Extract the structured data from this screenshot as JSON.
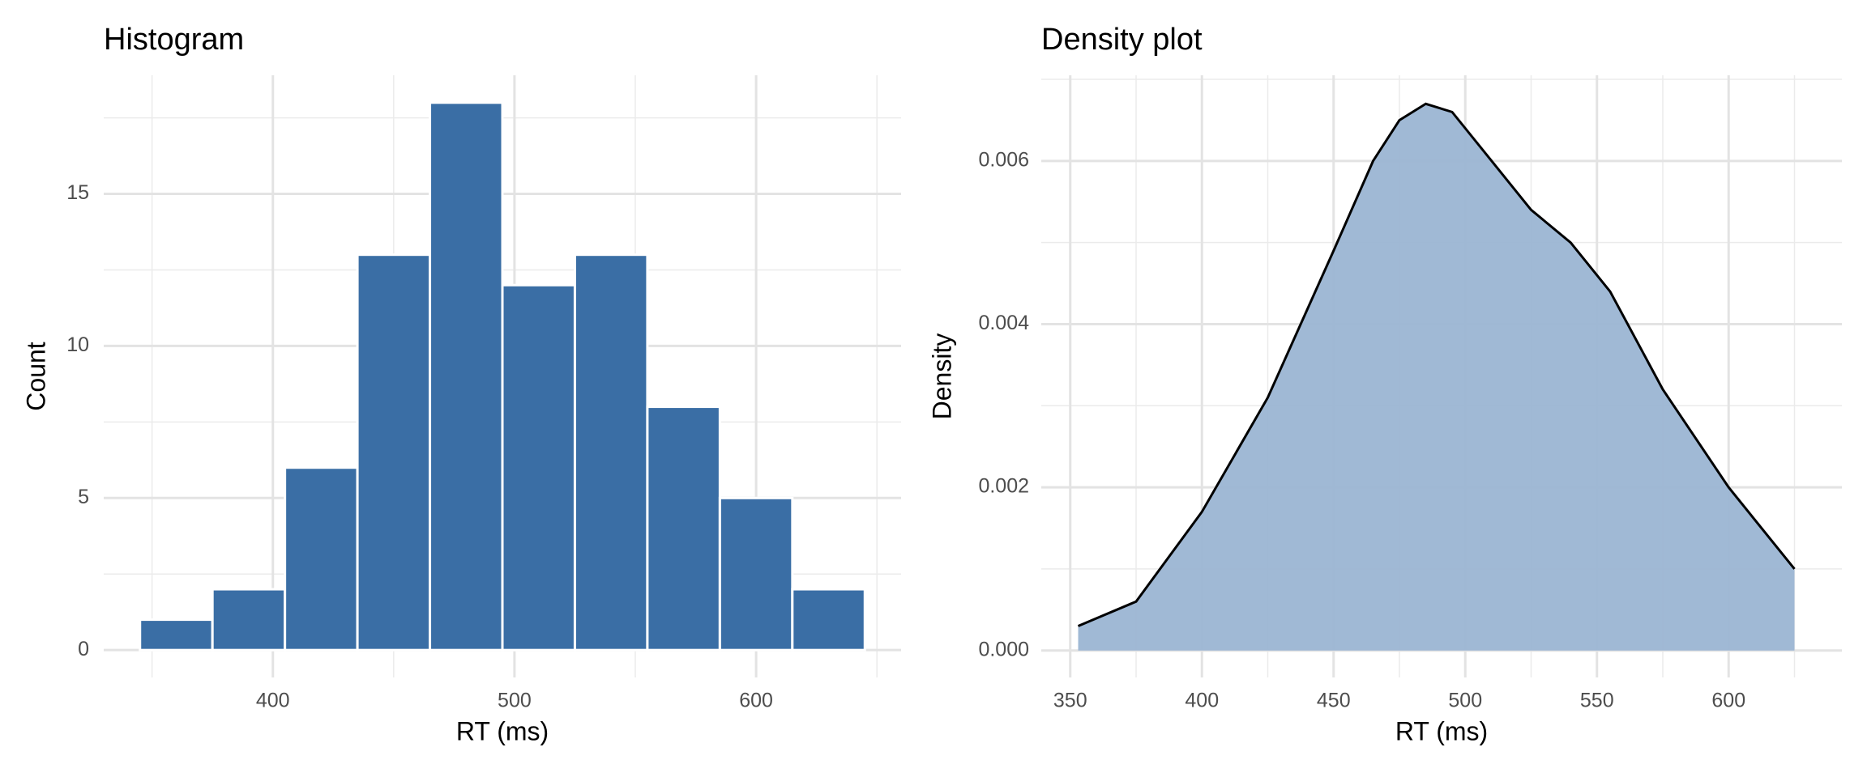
{
  "chart_data": [
    {
      "type": "histogram",
      "title": "Histogram",
      "x_label": "RT (ms)",
      "y_label": "Count",
      "bins": [
        345,
        375,
        405,
        435,
        465,
        495,
        525,
        555,
        585,
        615,
        645
      ],
      "values": [
        1,
        2,
        6,
        13,
        18,
        12,
        13,
        8,
        5,
        2
      ],
      "color": "#3a6ea5",
      "xlim": [
        330,
        660
      ],
      "ylim": [
        -0.9,
        18.9
      ],
      "xticks": [
        400,
        500,
        600
      ],
      "yticks": [
        0,
        5,
        10,
        15
      ],
      "grid": true
    },
    {
      "type": "density",
      "title": "Density plot",
      "x_label": "RT (ms)",
      "y_label": "Density",
      "x": [
        353,
        375,
        400,
        425,
        450,
        465,
        475,
        485,
        495,
        510,
        525,
        540,
        555,
        575,
        600,
        625
      ],
      "values": [
        0.0003,
        0.0006,
        0.0017,
        0.0031,
        0.0049,
        0.006,
        0.0065,
        0.0067,
        0.0066,
        0.006,
        0.0054,
        0.005,
        0.0044,
        0.0032,
        0.002,
        0.001
      ],
      "color": "#9bb5d3",
      "line_color": "#000000",
      "xlim": [
        339,
        643
      ],
      "ylim": [
        -0.00033,
        0.00705
      ],
      "xticks": [
        350,
        400,
        450,
        500,
        550,
        600
      ],
      "yticks": [
        {
          "value": 0,
          "label": "0.000"
        },
        0.002,
        0.004,
        0.006
      ],
      "grid": true
    }
  ]
}
